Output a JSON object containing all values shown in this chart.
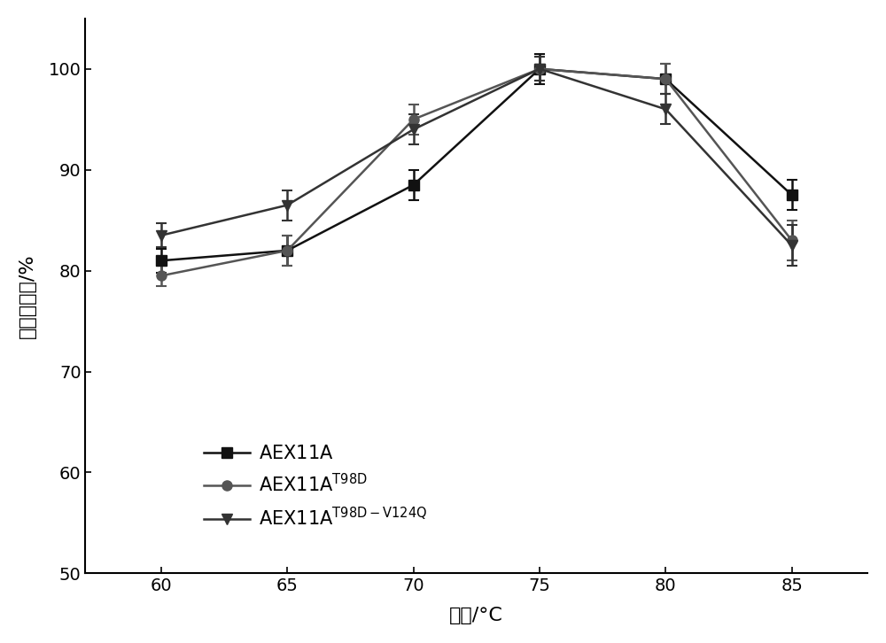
{
  "x": [
    60,
    65,
    70,
    75,
    80,
    85
  ],
  "series": [
    {
      "label_base": "AEX11A",
      "label_super": "",
      "y": [
        81,
        82,
        88.5,
        100,
        99,
        87.5
      ],
      "yerr": [
        1.2,
        1.5,
        1.5,
        1.5,
        1.5,
        1.5
      ],
      "marker": "s",
      "color": "#111111",
      "markersize": 8
    },
    {
      "label_base": "AEX11A",
      "label_super": "T98D",
      "y": [
        79.5,
        82,
        95,
        100,
        99,
        83
      ],
      "yerr": [
        1.0,
        1.5,
        1.5,
        1.2,
        1.5,
        2.0
      ],
      "marker": "o",
      "color": "#555555",
      "markersize": 8
    },
    {
      "label_base": "AEX11A",
      "label_super": "T98D-V124Q",
      "y": [
        83.5,
        86.5,
        94,
        100,
        96,
        82.5
      ],
      "yerr": [
        1.2,
        1.5,
        1.5,
        1.2,
        1.5,
        2.0
      ],
      "marker": "v",
      "color": "#333333",
      "markersize": 8
    }
  ],
  "xlabel": "温度/°C",
  "ylabel": "相对酶活性/%",
  "xlim": [
    57,
    88
  ],
  "ylim": [
    50,
    105
  ],
  "yticks": [
    50,
    60,
    70,
    80,
    90,
    100
  ],
  "xticks": [
    60,
    65,
    70,
    75,
    80,
    85
  ],
  "figsize": [
    10.0,
    7.26
  ],
  "dpi": 100,
  "linewidth": 1.8,
  "capsize": 4
}
